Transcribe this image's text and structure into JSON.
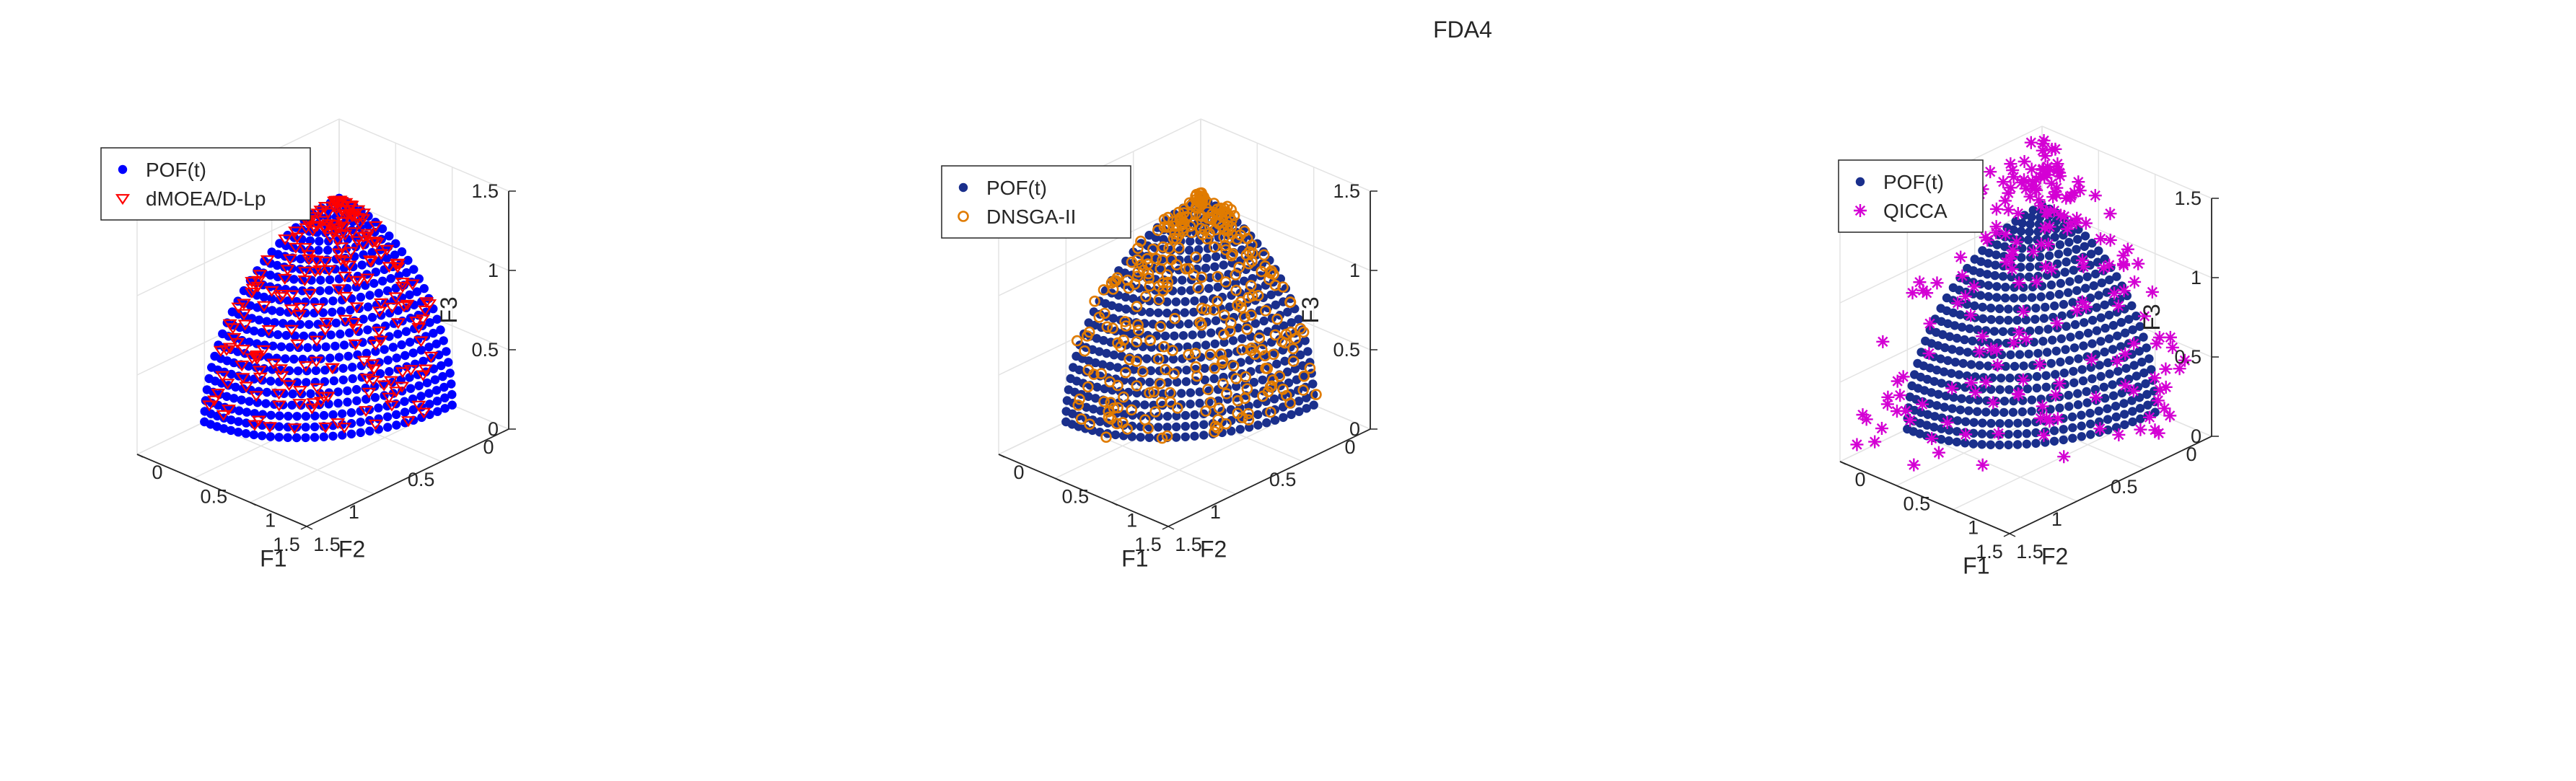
{
  "figure_title": "FDA4",
  "colors": {
    "pof_panel1": "#0000ff",
    "pof_panels23": "#1a2f8c",
    "dmoead": "#ff0000",
    "dnsga": "#e07b00",
    "qicca": "#d400d4",
    "grid": "#e3e3e3",
    "axis": "#262626"
  },
  "chart_data": [
    {
      "type": "scatter3d",
      "title": "",
      "xlabel": "F1",
      "ylabel": "F2",
      "zlabel": "F3",
      "xlim": [
        0,
        1.5
      ],
      "ylim": [
        0,
        1.5
      ],
      "zlim": [
        0,
        1.5
      ],
      "xticks": [
        "0",
        "0.5",
        "1",
        "1.5"
      ],
      "yticks": [
        "0",
        "0.5",
        "1",
        "1.5"
      ],
      "zticks": [
        "0",
        "0.5",
        "1",
        "1.5"
      ],
      "grid": true,
      "legend_position": "top-left",
      "series": [
        {
          "name": "POF(t)",
          "marker": "filled-circle",
          "color": "#0000ff",
          "surface": "unit sphere octant F1^2+F2^2+F3^2=1",
          "n_polar": 24,
          "n_azimuth": 30
        },
        {
          "name": "dMOEA/D-Lp",
          "marker": "triangle-down",
          "color": "#ff0000",
          "surface": "on POF(t) surface",
          "n_points": 230
        }
      ]
    },
    {
      "type": "scatter3d",
      "title": "",
      "xlabel": "F1",
      "ylabel": "F2",
      "zlabel": "F3",
      "xlim": [
        0,
        1.5
      ],
      "ylim": [
        0,
        1.5
      ],
      "zlim": [
        0,
        1.5
      ],
      "xticks": [
        "0",
        "0.5",
        "1",
        "1.5"
      ],
      "yticks": [
        "0",
        "0.5",
        "1",
        "1.5"
      ],
      "zticks": [
        "0",
        "0.5",
        "1",
        "1.5"
      ],
      "grid": true,
      "legend_position": "top-left",
      "series": [
        {
          "name": "POF(t)",
          "marker": "filled-circle",
          "color": "#1a2f8c",
          "surface": "unit sphere octant F1^2+F2^2+F3^2=1",
          "n_polar": 24,
          "n_azimuth": 30
        },
        {
          "name": "DNSGA-II",
          "marker": "open-circle",
          "color": "#e07b00",
          "surface": "slightly outside POF(t), radius ~1.0-1.05",
          "n_points": 320
        }
      ]
    },
    {
      "type": "scatter3d",
      "title": "",
      "xlabel": "F1",
      "ylabel": "F2",
      "zlabel": "F3",
      "xlim": [
        0,
        1.5
      ],
      "ylim": [
        0,
        1.5
      ],
      "zlim": [
        0,
        1.5
      ],
      "xticks": [
        "0",
        "0.5",
        "1",
        "1.5"
      ],
      "yticks": [
        "0",
        "0.5",
        "1",
        "1.5"
      ],
      "zticks": [
        "0",
        "0.5",
        "1",
        "1.5"
      ],
      "grid": true,
      "legend_position": "top-left",
      "series": [
        {
          "name": "POF(t)",
          "marker": "filled-circle",
          "color": "#1a2f8c",
          "surface": "unit sphere octant F1^2+F2^2+F3^2=1",
          "n_polar": 24,
          "n_azimuth": 30
        },
        {
          "name": "QICCA",
          "marker": "asterisk",
          "color": "#d400d4",
          "surface": "scattered outside POF(t), radius ~1.2-1.45",
          "n_points": 200
        }
      ]
    }
  ]
}
